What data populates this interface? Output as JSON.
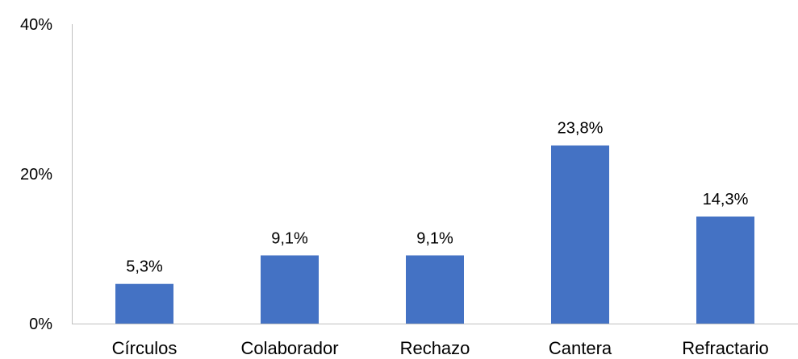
{
  "chart_data": {
    "type": "bar",
    "categories": [
      "Círculos",
      "Colaborador",
      "Rechazo",
      "Cantera",
      "Refractario"
    ],
    "values": [
      5.3,
      9.1,
      9.1,
      23.8,
      14.3
    ],
    "data_labels": [
      "5,3%",
      "9,1%",
      "9,1%",
      "23,8%",
      "14,3%"
    ],
    "title": "",
    "xlabel": "",
    "ylabel": "",
    "ylim": [
      0,
      40
    ],
    "yticks": [
      0,
      20,
      40
    ],
    "ytick_labels": [
      "0%",
      "20%",
      "40%"
    ],
    "grid": false,
    "legend": "none",
    "bar_color": "#4472C4",
    "axis_color": "#BFBFBF"
  }
}
